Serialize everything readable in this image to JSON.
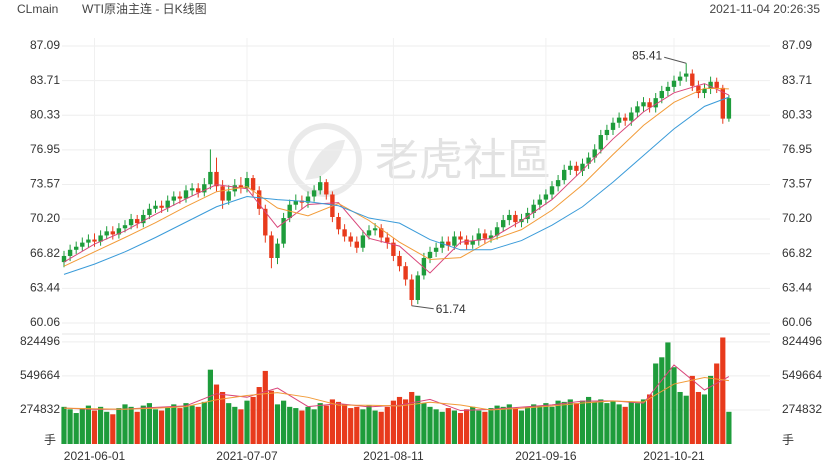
{
  "header": {
    "symbol": "CLmain",
    "title": "WTI原油主连 - 日K线图",
    "timestamp": "2021-11-04 20:26:35"
  },
  "watermark": "老虎社區",
  "chart_data": [
    {
      "type": "candlestick",
      "categories": [
        null,
        null,
        null,
        null,
        null,
        "2021-06-01",
        null,
        null,
        null,
        null,
        null,
        null,
        null,
        null,
        null,
        null,
        null,
        null,
        null,
        null,
        null,
        null,
        null,
        null,
        null,
        null,
        null,
        null,
        null,
        null,
        "2021-07-07",
        null,
        null,
        null,
        null,
        null,
        null,
        null,
        null,
        null,
        null,
        null,
        null,
        null,
        null,
        null,
        null,
        null,
        null,
        null,
        null,
        null,
        null,
        null,
        "2021-08-11",
        null,
        null,
        null,
        null,
        null,
        null,
        null,
        null,
        null,
        null,
        null,
        null,
        null,
        null,
        null,
        null,
        null,
        null,
        null,
        null,
        null,
        null,
        null,
        null,
        "2021-09-16",
        null,
        null,
        null,
        null,
        null,
        null,
        null,
        null,
        null,
        null,
        null,
        null,
        null,
        null,
        null,
        null,
        null,
        null,
        null,
        null,
        "2021-10-21",
        null,
        null,
        null,
        null,
        null,
        null,
        null,
        null,
        null
      ],
      "open": [
        66.0,
        66.6,
        67.2,
        67.5,
        67.9,
        68.2,
        68.0,
        68.6,
        69.0,
        68.7,
        69.3,
        69.6,
        70.2,
        69.8,
        70.6,
        71.2,
        71.5,
        71.3,
        72.0,
        72.4,
        72.2,
        73.0,
        73.2,
        72.8,
        73.6,
        74.8,
        73.4,
        72.0,
        72.9,
        73.5,
        73.2,
        74.2,
        73.0,
        71.2,
        68.6,
        66.4,
        67.8,
        70.3,
        71.6,
        72.0,
        71.8,
        72.4,
        73.0,
        73.8,
        72.6,
        70.4,
        69.2,
        68.5,
        68.0,
        67.4,
        68.6,
        69.1,
        69.3,
        68.4,
        67.9,
        66.6,
        65.6,
        64.3,
        62.3,
        64.7,
        66.4,
        67.0,
        67.4,
        68.0,
        67.6,
        68.5,
        68.2,
        67.7,
        68.1,
        68.8,
        68.3,
        68.6,
        69.4,
        70.1,
        70.6,
        69.9,
        70.2,
        70.8,
        71.6,
        72.1,
        72.6,
        73.4,
        74.0,
        75.0,
        75.4,
        74.9,
        75.6,
        76.2,
        77.0,
        78.4,
        78.9,
        79.6,
        80.1,
        79.8,
        80.6,
        81.2,
        81.6,
        81.1,
        82.0,
        82.7,
        83.1,
        83.7,
        84.1,
        84.4,
        83.2,
        82.5,
        82.9,
        83.6,
        83.0,
        80.0
      ],
      "high": [
        67.1,
        67.7,
        68.0,
        68.4,
        68.7,
        68.8,
        69.1,
        69.5,
        69.5,
        69.8,
        70.1,
        70.7,
        70.6,
        71.1,
        71.7,
        72.0,
        72.0,
        72.5,
        72.9,
        72.9,
        73.5,
        73.7,
        73.7,
        74.2,
        77.0,
        76.2,
        74.0,
        73.5,
        74.1,
        74.3,
        74.8,
        74.5,
        73.4,
        71.6,
        69.0,
        68.3,
        70.8,
        72.1,
        72.6,
        72.5,
        72.9,
        73.5,
        74.4,
        74.1,
        72.9,
        70.8,
        69.7,
        68.9,
        68.5,
        69.1,
        69.6,
        69.8,
        69.7,
        68.9,
        68.3,
        67.1,
        66.0,
        64.8,
        65.1,
        66.9,
        67.5,
        67.9,
        68.5,
        68.5,
        69.0,
        69.0,
        68.6,
        68.6,
        69.3,
        69.2,
        69.1,
        69.9,
        70.6,
        71.1,
        71.0,
        70.7,
        71.3,
        72.1,
        72.6,
        73.1,
        73.9,
        74.5,
        75.5,
        75.9,
        75.8,
        76.1,
        76.7,
        77.5,
        78.9,
        79.4,
        80.1,
        80.6,
        80.5,
        81.1,
        81.7,
        82.1,
        82.0,
        82.5,
        83.2,
        83.6,
        84.2,
        84.6,
        85.41,
        84.8,
        83.7,
        83.4,
        84.1,
        84.0,
        83.3,
        82.3
      ],
      "low": [
        65.5,
        66.1,
        66.8,
        67.1,
        67.4,
        67.5,
        67.6,
        68.2,
        68.2,
        68.3,
        68.9,
        69.2,
        69.3,
        69.4,
        70.2,
        70.8,
        70.8,
        70.9,
        71.5,
        71.7,
        71.8,
        72.5,
        72.3,
        72.4,
        73.1,
        72.9,
        71.2,
        71.6,
        72.4,
        72.7,
        72.8,
        72.5,
        70.6,
        67.9,
        65.4,
        65.8,
        67.4,
        69.9,
        71.1,
        71.2,
        71.3,
        71.9,
        72.6,
        72.1,
        69.9,
        68.7,
        68.0,
        67.5,
        66.9,
        67.0,
        68.2,
        68.6,
        67.9,
        67.3,
        66.1,
        65.1,
        63.7,
        61.74,
        61.9,
        64.3,
        65.9,
        66.5,
        66.9,
        67.1,
        67.2,
        67.7,
        67.2,
        67.3,
        67.6,
        67.8,
        67.9,
        68.2,
        69.0,
        69.6,
        69.4,
        69.4,
        69.8,
        70.3,
        71.1,
        71.6,
        72.1,
        72.9,
        73.6,
        74.5,
        74.4,
        74.4,
        75.1,
        75.7,
        76.6,
        77.9,
        78.4,
        79.1,
        79.3,
        79.3,
        80.1,
        80.7,
        80.6,
        80.6,
        81.5,
        82.2,
        82.6,
        83.2,
        83.6,
        82.7,
        82.0,
        82.0,
        82.4,
        82.5,
        79.5,
        79.7
      ],
      "close": [
        66.6,
        67.2,
        67.5,
        67.9,
        68.2,
        68.0,
        68.6,
        69.0,
        68.7,
        69.3,
        69.6,
        70.2,
        69.8,
        70.6,
        71.2,
        71.5,
        71.3,
        72.0,
        72.4,
        72.2,
        73.0,
        73.2,
        72.8,
        73.6,
        74.8,
        73.4,
        72.0,
        72.9,
        73.5,
        73.2,
        74.2,
        73.0,
        71.2,
        68.6,
        66.4,
        67.8,
        70.3,
        71.6,
        72.0,
        71.8,
        72.4,
        73.0,
        73.8,
        72.6,
        70.4,
        69.2,
        68.5,
        68.0,
        67.4,
        68.6,
        69.1,
        69.3,
        68.4,
        67.9,
        66.6,
        65.6,
        64.3,
        62.3,
        64.7,
        66.4,
        67.0,
        67.4,
        68.0,
        67.6,
        68.5,
        68.2,
        67.7,
        68.1,
        68.8,
        68.3,
        68.6,
        69.4,
        70.1,
        70.6,
        69.9,
        70.2,
        70.8,
        71.6,
        72.1,
        72.6,
        73.4,
        74.0,
        75.0,
        75.4,
        74.9,
        75.6,
        76.2,
        77.0,
        78.4,
        78.9,
        79.6,
        80.1,
        79.8,
        80.6,
        81.2,
        81.6,
        81.1,
        82.0,
        82.7,
        83.1,
        83.7,
        84.1,
        84.4,
        83.2,
        82.5,
        82.9,
        83.6,
        83.0,
        80.0,
        82.0
      ],
      "up_color": "#1e9c3b",
      "down_color": "#e83a1c",
      "ylim": [
        59.08,
        87.87
      ],
      "yticks": [
        60.06,
        63.44,
        66.82,
        {
          "value": 70.2,
          "label": "70.20"
        },
        73.57,
        76.95,
        80.33,
        83.71,
        87.09
      ],
      "grid": true,
      "moving_averages": [
        {
          "color": "#d9467a",
          "x": [
            0,
            5,
            10,
            15,
            20,
            25,
            30,
            35,
            40,
            45,
            50,
            55,
            60,
            65,
            70,
            75,
            80,
            85,
            90,
            95,
            100,
            105,
            109
          ],
          "values": [
            66.0,
            67.76,
            69.04,
            70.66,
            72.18,
            73.56,
            73.16,
            69.4,
            71.62,
            71.8,
            68.32,
            67.56,
            64.94,
            67.94,
            68.3,
            70.04,
            72.1,
            74.98,
            78.02,
            80.66,
            82.52,
            83.42,
            82.3
          ]
        },
        {
          "color": "#f29b38",
          "x": [
            0,
            5,
            10,
            15,
            20,
            25,
            30,
            35,
            40,
            45,
            50,
            55,
            60,
            65,
            70,
            75,
            80,
            85,
            90,
            95,
            100,
            105,
            109
          ],
          "values": [
            65.6,
            67.0,
            68.4,
            69.85,
            71.42,
            72.87,
            73.36,
            71.28,
            70.51,
            71.71,
            70.06,
            67.94,
            66.25,
            66.44,
            68.12,
            69.17,
            71.07,
            73.54,
            76.5,
            79.34,
            81.59,
            82.97,
            82.9
          ]
        },
        {
          "color": "#3a9bd9",
          "x": [
            0,
            5,
            10,
            15,
            20,
            25,
            30,
            35,
            40,
            45,
            50,
            55,
            60,
            65,
            70,
            75,
            80,
            85,
            90,
            95,
            100,
            105,
            109
          ],
          "values": [
            64.8,
            65.8,
            67.0,
            68.4,
            69.9,
            71.4,
            72.4,
            72.1,
            71.9,
            71.5,
            70.3,
            69.8,
            68.2,
            67.2,
            67.2,
            68.1,
            69.6,
            71.4,
            73.8,
            76.4,
            79.0,
            81.2,
            82.1
          ]
        }
      ]
    },
    {
      "type": "bar",
      "values": [
        300000,
        280000,
        250000,
        290000,
        310000,
        270000,
        300000,
        260000,
        240000,
        290000,
        320000,
        300000,
        260000,
        310000,
        330000,
        280000,
        270000,
        300000,
        320000,
        290000,
        330000,
        310000,
        300000,
        340000,
        600000,
        480000,
        420000,
        330000,
        300000,
        280000,
        350000,
        380000,
        460000,
        590000,
        430000,
        320000,
        350000,
        300000,
        290000,
        270000,
        300000,
        280000,
        330000,
        310000,
        360000,
        340000,
        320000,
        290000,
        300000,
        280000,
        310000,
        270000,
        260000,
        300000,
        350000,
        380000,
        360000,
        420000,
        390000,
        330000,
        300000,
        280000,
        260000,
        290000,
        270000,
        250000,
        280000,
        300000,
        270000,
        260000,
        290000,
        310000,
        300000,
        320000,
        290000,
        270000,
        300000,
        320000,
        310000,
        330000,
        300000,
        350000,
        340000,
        360000,
        330000,
        350000,
        380000,
        340000,
        360000,
        330000,
        350000,
        320000,
        300000,
        340000,
        330000,
        360000,
        400000,
        650000,
        700000,
        820000,
        620000,
        420000,
        390000,
        550000,
        420000,
        400000,
        550000,
        650000,
        860000,
        260000
      ],
      "ylim": [
        0,
        880000
      ],
      "yticks": [
        274832,
        549664,
        824496
      ],
      "unit": "手",
      "moving_averages": [
        {
          "color": "#d9467a",
          "x": [
            0,
            5,
            10,
            15,
            20,
            25,
            30,
            35,
            40,
            45,
            50,
            55,
            60,
            65,
            70,
            75,
            80,
            85,
            90,
            95,
            100,
            105,
            109
          ],
          "values": [
            290000,
            280000,
            282000,
            296000,
            308000,
            406000,
            378000,
            452000,
            302000,
            326000,
            300000,
            314000,
            360000,
            270000,
            280000,
            298000,
            316000,
            346000,
            348000,
            330000,
            638000,
            436000,
            544000
          ]
        },
        {
          "color": "#f29b38",
          "x": [
            0,
            5,
            10,
            15,
            20,
            25,
            30,
            35,
            40,
            45,
            50,
            55,
            60,
            65,
            70,
            75,
            80,
            85,
            90,
            95,
            100,
            105,
            109
          ],
          "values": [
            290000,
            285000,
            281000,
            289000,
            302000,
            357000,
            392000,
            415000,
            377000,
            314000,
            313000,
            307000,
            337000,
            315000,
            275000,
            289000,
            307000,
            331000,
            347000,
            339000,
            484000,
            537000,
            512000
          ]
        }
      ]
    }
  ]
}
